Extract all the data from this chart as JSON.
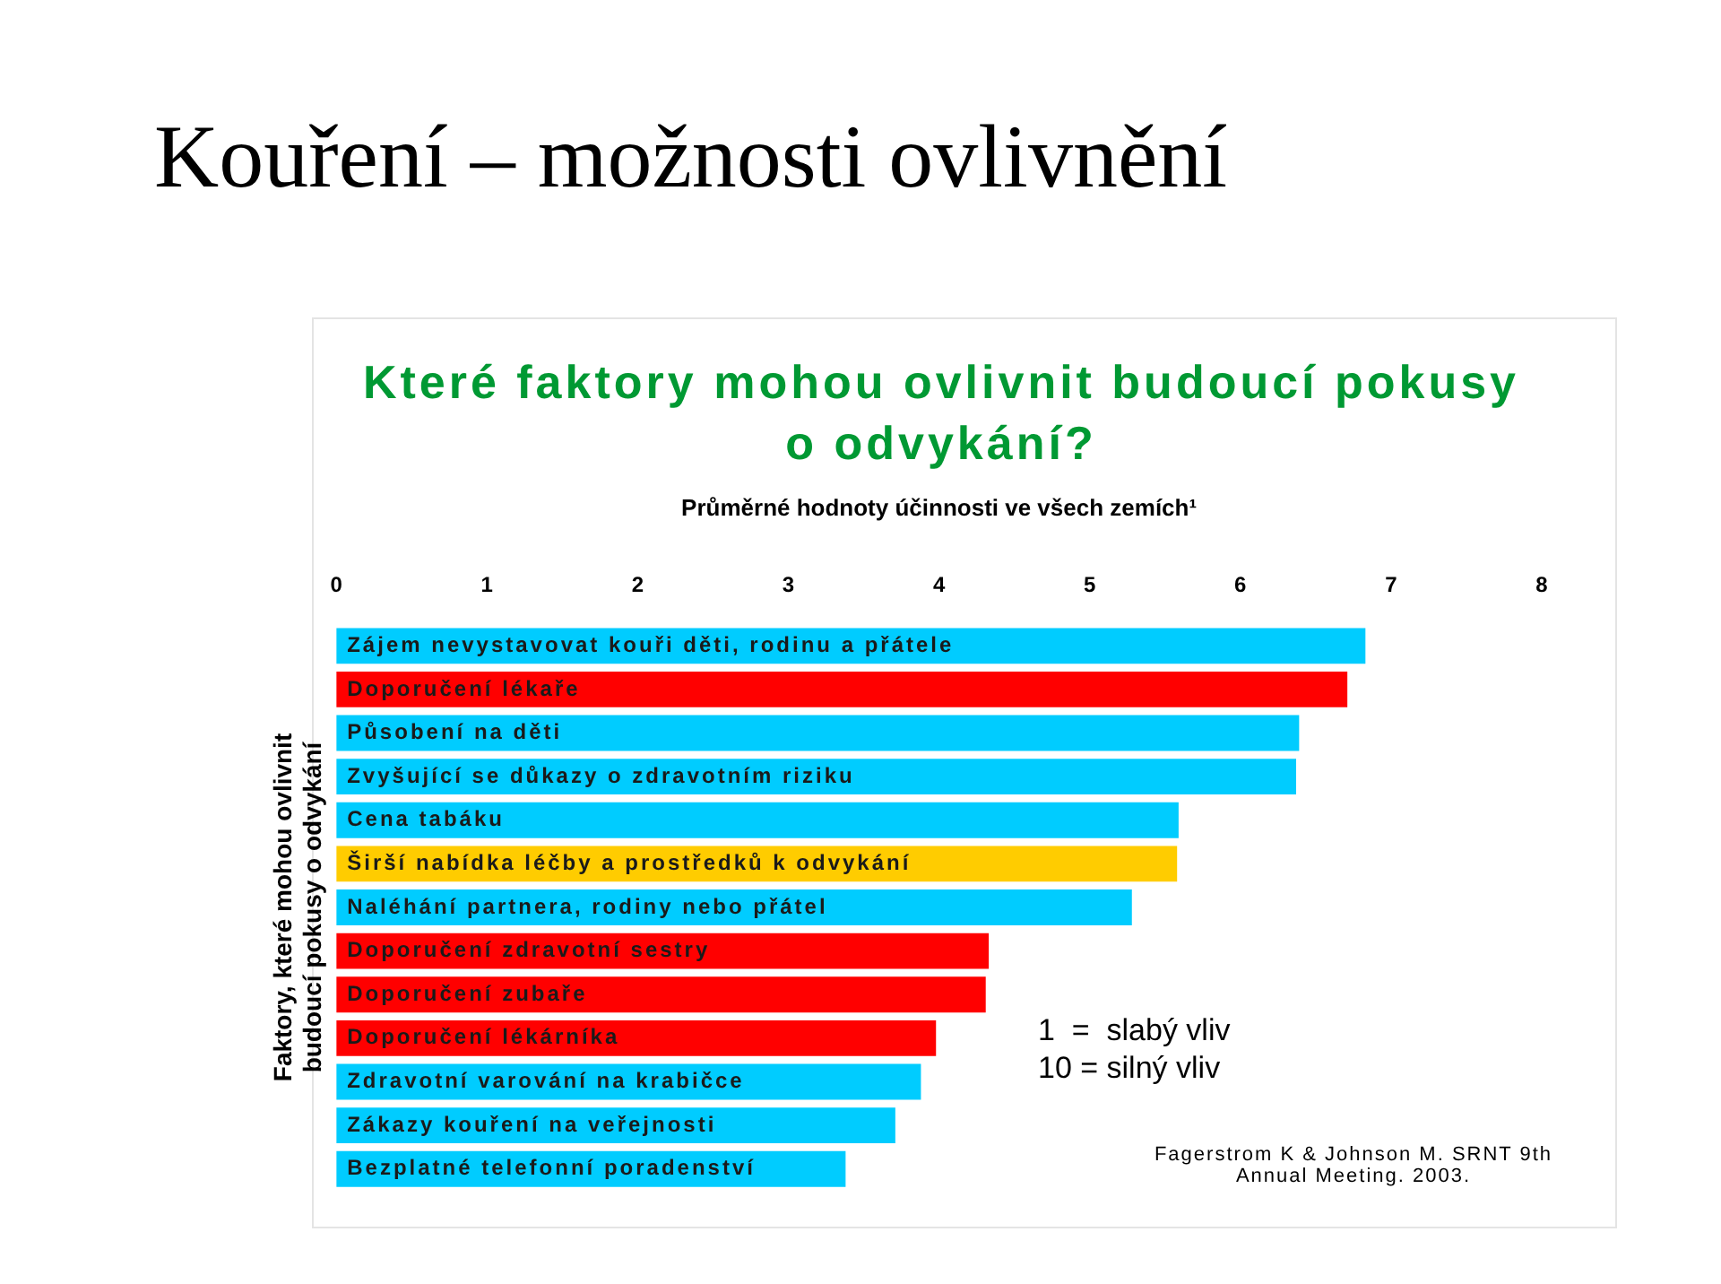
{
  "chart_data": {
    "type": "bar",
    "orientation": "horizontal",
    "title": "Kouření – možnosti ovlivnění",
    "subtitle": "Které faktory mohou ovlivnit budoucí pokusy o odvykání?",
    "xlabel": "Průměrné hodnoty účinnosti ve všech zemích¹",
    "ylabel": "Faktory, které mohou ovlivnit budoucí pokusy o odvykání",
    "categories": [
      "Zájem nevystavovat kouři děti, rodinu a přátele",
      "Doporučení lékaře",
      "Působení na děti",
      "Zvyšující se důkazy o zdravotním riziku",
      "Cena tabáku",
      "Širší nabídka léčby a prostředků k odvykání",
      "Naléhání partnera, rodiny nebo přátel",
      "Doporučení zdravotní sestry",
      "Doporučení zubaře",
      "Doporučení lékárníka",
      "Zdravotní varování na krabičce",
      "Zákazy kouření na veřejnosti",
      "Bezplatné telefonní poradenství"
    ],
    "values": [
      6.83,
      6.71,
      6.39,
      6.37,
      5.59,
      5.58,
      5.28,
      4.33,
      4.31,
      3.98,
      3.88,
      3.71,
      3.38
    ],
    "colors": [
      "#00ccff",
      "#ff0000",
      "#00ccff",
      "#00ccff",
      "#00ccff",
      "#ffcc00",
      "#00ccff",
      "#ff0000",
      "#ff0000",
      "#ff0000",
      "#00ccff",
      "#00ccff",
      "#00ccff"
    ],
    "xlim": [
      0,
      8
    ],
    "xticks": [
      0,
      1,
      2,
      3,
      4,
      5,
      6,
      7,
      8
    ],
    "grid": false,
    "legend": false,
    "annotations": [
      "1  =  slabý vliv",
      "10 = silný vliv",
      "Fagerstrom K & Johnson M. SRNT 9th Annual Meeting. 2003."
    ]
  }
}
